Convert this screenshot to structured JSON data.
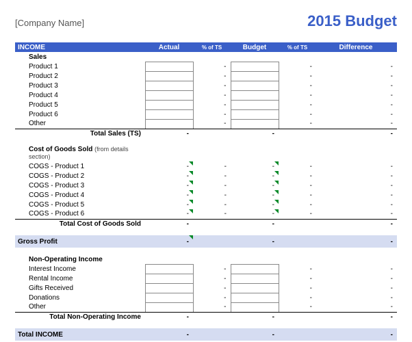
{
  "header": {
    "company_placeholder": "[Company Name]",
    "title": "2015 Budget"
  },
  "columns": {
    "income": "INCOME",
    "actual": "Actual",
    "pct1": "% of TS",
    "budget": "Budget",
    "pct2": "% of TS",
    "diff": "Difference"
  },
  "sales": {
    "heading": "Sales",
    "items": [
      "Product 1",
      "Product 2",
      "Product 3",
      "Product 4",
      "Product 5",
      "Product 6",
      "Other"
    ],
    "total_label": "Total Sales (TS)"
  },
  "cogs": {
    "heading": "Cost of Goods Sold",
    "heading_note": "(from details section)",
    "items": [
      "COGS - Product 1",
      "COGS - Product 2",
      "COGS - Product 3",
      "COGS - Product 4",
      "COGS - Product 5",
      "COGS - Product 6"
    ],
    "total_label": "Total Cost of Goods Sold"
  },
  "gross_profit_label": "Gross Profit",
  "nonop": {
    "heading": "Non-Operating Income",
    "items": [
      "Interest Income",
      "Rental Income",
      "Gifts Received",
      "Donations",
      "Other"
    ],
    "total_label": "Total Non-Operating Income"
  },
  "total_income_label": "Total INCOME",
  "dash": "-"
}
